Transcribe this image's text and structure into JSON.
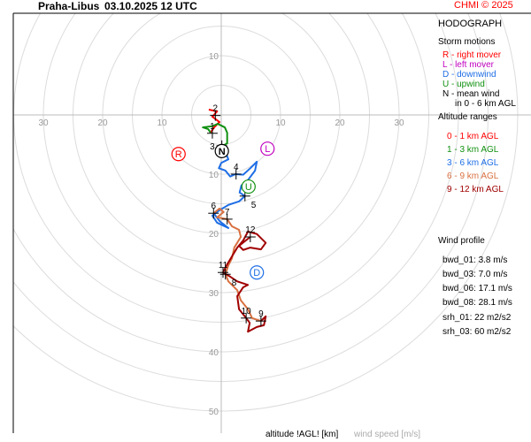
{
  "header": {
    "station": "Praha-Libus",
    "datetime": "03.10.2025 12 UTC",
    "copyright": "CHMI © 2025"
  },
  "legend": {
    "title": "HODOGRAPH",
    "storm_motions_title": "Storm motions",
    "storm_motions": [
      {
        "text": "R - right mover",
        "color": "#ff0000"
      },
      {
        "text": "L - left mover",
        "color": "#c000c0"
      },
      {
        "text": "D - downwind",
        "color": "#1e6ee6"
      },
      {
        "text": "U - upwind",
        "color": "#109010"
      },
      {
        "text": "N - mean wind",
        "color": "#000000"
      },
      {
        "text": "in 0 - 6 km AGL",
        "color": "#000000"
      }
    ],
    "altitude_title": "Altitude ranges",
    "altitude_ranges": [
      {
        "text": "0 - 1 km AGL",
        "color": "#ff0000"
      },
      {
        "text": "1 - 3 km AGL",
        "color": "#109010"
      },
      {
        "text": "3 - 6 km AGL",
        "color": "#1e6ee6"
      },
      {
        "text": "6 - 9 km AGL",
        "color": "#d87040"
      },
      {
        "text": "9 - 12 km AGL",
        "color": "#a00000"
      }
    ],
    "wind_profile_title": "Wind profile",
    "wind_profile": [
      "bwd_01: 3.8 m/s",
      "bwd_03: 7.0 m/s",
      "bwd_06: 17.1 m/s",
      "bwd_08: 28.1 m/s"
    ],
    "helicity": [
      "srh_01: 22 m2/s2",
      "srh_03: 60 m2/s2"
    ]
  },
  "footer": {
    "altitude_label": "altitude !AGL! [km]",
    "speed_label": "wind speed [m/s]"
  },
  "chart_data": {
    "type": "line",
    "units": "m/s",
    "x_ticks": [
      -30,
      -20,
      -10,
      10,
      20,
      30
    ],
    "y_ticks": [
      10,
      -10,
      -20,
      -30,
      -40,
      -50
    ],
    "tick_labels_x": [
      "30",
      "20",
      "10",
      "10",
      "20",
      "30"
    ],
    "tick_labels_y": [
      "10",
      "10",
      "20",
      "30",
      "40",
      "50"
    ],
    "ring_step": 5,
    "grid": true,
    "segments": [
      {
        "range": "0 - 1 km AGL",
        "color": "#ff0000",
        "points": [
          [
            -2.1,
            0.9
          ],
          [
            -0.7,
            0.6
          ],
          [
            -1.5,
            -0.3
          ],
          [
            -0.3,
            -1.2
          ],
          [
            -1.2,
            -2.1
          ],
          [
            -1.8,
            -3.0
          ]
        ]
      },
      {
        "range": "1 - 3 km AGL",
        "color": "#109010",
        "points": [
          [
            -1.8,
            -3.0
          ],
          [
            -2.2,
            -2.4
          ],
          [
            -3.1,
            -2.1
          ],
          [
            -1.5,
            -1.9
          ],
          [
            -0.6,
            -1.5
          ],
          [
            0.6,
            -2.1
          ],
          [
            1.0,
            -3.0
          ],
          [
            1.0,
            -4.8
          ],
          [
            0.3,
            -5.2
          ]
        ]
      },
      {
        "range": "3 - 6 km AGL",
        "color": "#1e6ee6",
        "points": [
          [
            0.3,
            -5.2
          ],
          [
            1.2,
            -7.5
          ],
          [
            0,
            -8.1
          ],
          [
            -0.4,
            -9.0
          ],
          [
            0.7,
            -9.4
          ],
          [
            1.5,
            -10.4
          ],
          [
            2.4,
            -10
          ],
          [
            3.7,
            -10.1
          ],
          [
            4.9,
            -9.0
          ],
          [
            6.0,
            -7.9
          ],
          [
            5.7,
            -9.4
          ],
          [
            4.5,
            -11.0
          ],
          [
            3.4,
            -11.9
          ],
          [
            3.1,
            -13.1
          ],
          [
            4.0,
            -13.7
          ],
          [
            3.0,
            -14.6
          ],
          [
            1.2,
            -15.2
          ],
          [
            -0.3,
            -16.1
          ],
          [
            -1.5,
            -17.0
          ],
          [
            -0.7,
            -18.2
          ],
          [
            1.2,
            -19.1
          ],
          [
            -0.2,
            -18.0
          ],
          [
            -1.3,
            -16.6
          ]
        ]
      },
      {
        "range": "6 - 9 km AGL",
        "color": "#d87040",
        "points": [
          [
            -1.3,
            -16.6
          ],
          [
            -0.3,
            -15.8
          ],
          [
            0.4,
            -16.4
          ],
          [
            -0.7,
            -17.3
          ],
          [
            1.0,
            -17.6
          ],
          [
            1.8,
            -18.8
          ],
          [
            3.0,
            -19.4
          ],
          [
            3.3,
            -20.6
          ],
          [
            2.2,
            -22.4
          ],
          [
            1.8,
            -24.2
          ],
          [
            1.2,
            -25.4
          ],
          [
            0.7,
            -26.9
          ],
          [
            1.2,
            -28.1
          ],
          [
            2.7,
            -29.6
          ],
          [
            3.3,
            -31.3
          ],
          [
            4.5,
            -32.8
          ],
          [
            5.2,
            -34.3
          ],
          [
            6.7,
            -34.8
          ]
        ]
      },
      {
        "range": "9 - 12 km AGL",
        "color": "#a00000",
        "points": [
          [
            6.7,
            -34.8
          ],
          [
            7.5,
            -34.0
          ],
          [
            7.2,
            -35.5
          ],
          [
            6.0,
            -35.8
          ],
          [
            4.5,
            -36.6
          ],
          [
            4.8,
            -35.1
          ],
          [
            4.2,
            -34.3
          ],
          [
            3.0,
            -32.8
          ],
          [
            2.7,
            -30.6
          ],
          [
            3.7,
            -29.1
          ],
          [
            4.5,
            -28.7
          ],
          [
            2.7,
            -28.1
          ],
          [
            1.5,
            -27.3
          ],
          [
            0.3,
            -26.6
          ],
          [
            0.9,
            -25.4
          ],
          [
            1.8,
            -23.9
          ],
          [
            2.7,
            -22.4
          ],
          [
            3.7,
            -21.2
          ],
          [
            4.5,
            -19.7
          ],
          [
            6.0,
            -20.1
          ],
          [
            7.5,
            -21.6
          ],
          [
            6.7,
            -22.7
          ],
          [
            4.9,
            -22.4
          ],
          [
            3.7,
            -22.8
          ],
          [
            3.0,
            -22.1
          ],
          [
            4.9,
            -20.6
          ]
        ]
      }
    ],
    "height_markers": [
      {
        "label": "1",
        "u": -1.5,
        "v": -3.1
      },
      {
        "label": "2",
        "u": -1.0,
        "v": -0.1
      },
      {
        "label": "3",
        "u": 0.1,
        "v": -5.2
      },
      {
        "label": "4",
        "u": 2.5,
        "v": -10.0
      },
      {
        "label": "5",
        "u": 4.0,
        "v": -13.7
      },
      {
        "label": "6",
        "u": -1.3,
        "v": -16.6
      },
      {
        "label": "7",
        "u": 1.0,
        "v": -17.6
      },
      {
        "label": "8",
        "u": 0.7,
        "v": -26.9
      },
      {
        "label": "9",
        "u": 6.7,
        "v": -34.8
      },
      {
        "label": "10",
        "u": 4.2,
        "v": -34.3
      },
      {
        "label": "11",
        "u": 0.3,
        "v": -26.6
      },
      {
        "label": "12",
        "u": 4.9,
        "v": -20.6
      }
    ],
    "storm_motions": [
      {
        "label": "R",
        "u": -7.2,
        "v": -6.6,
        "color": "#ff0000"
      },
      {
        "label": "L",
        "u": 7.8,
        "v": -5.7,
        "color": "#c000c0"
      },
      {
        "label": "N",
        "u": 0.1,
        "v": -6.1,
        "color": "#000000"
      },
      {
        "label": "U",
        "u": 4.6,
        "v": -12.1,
        "color": "#109010"
      },
      {
        "label": "D",
        "u": 6.0,
        "v": -26.6,
        "color": "#1e6ee6"
      }
    ]
  }
}
